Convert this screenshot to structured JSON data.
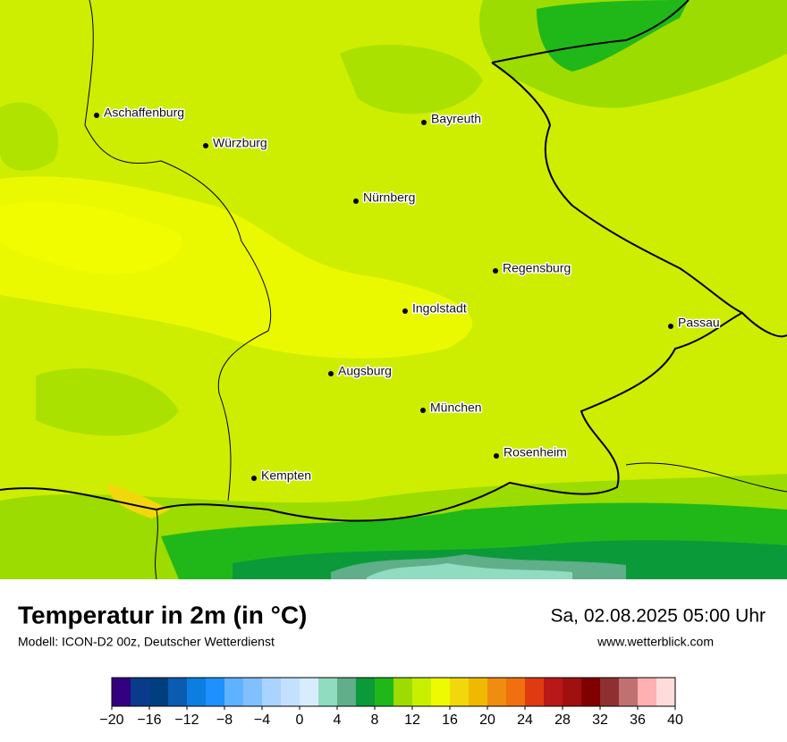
{
  "header": {
    "title": "Temperatur in 2m (in °C)",
    "subtitle": "Modell: ICON-D2 00z, Deutscher Wetterdienst",
    "date": "Sa, 02.08.2025 05:00 Uhr",
    "url": "www.wetterblick.com"
  },
  "map": {
    "cities": [
      "Aschaffenburg",
      "Würzburg",
      "Bayreuth",
      "Nürnberg",
      "Regensburg",
      "Ingolstadt",
      "Passau",
      "Augsburg",
      "München",
      "Rosenheim",
      "Kempten"
    ]
  },
  "colorbar": {
    "range": [
      -20,
      40
    ],
    "colors": [
      "#330080",
      "#0a3a8a",
      "#003f7f",
      "#0a5cb0",
      "#0b7ee0",
      "#1e90ff",
      "#5fb2ff",
      "#80c0ff",
      "#a8d4ff",
      "#c4e0ff",
      "#d8ecff",
      "#90dcc0",
      "#60ae8a",
      "#0a9a3a",
      "#20b818",
      "#9cdc00",
      "#c9ef00",
      "#eefa00",
      "#f2d80a",
      "#f0b800",
      "#f08c10",
      "#f07010",
      "#e03a10",
      "#b81818",
      "#a01010",
      "#800000",
      "#8f3030",
      "#c07070",
      "#ffb0b0",
      "#ffdcdc"
    ],
    "ticks": [
      {
        "value": -20,
        "label": "−20"
      },
      {
        "value": -16,
        "label": "−16"
      },
      {
        "value": -12,
        "label": "−12"
      },
      {
        "value": -8,
        "label": "−8"
      },
      {
        "value": -4,
        "label": "−4"
      },
      0,
      4,
      8,
      12,
      16,
      20,
      24,
      28,
      32,
      36,
      40
    ]
  }
}
